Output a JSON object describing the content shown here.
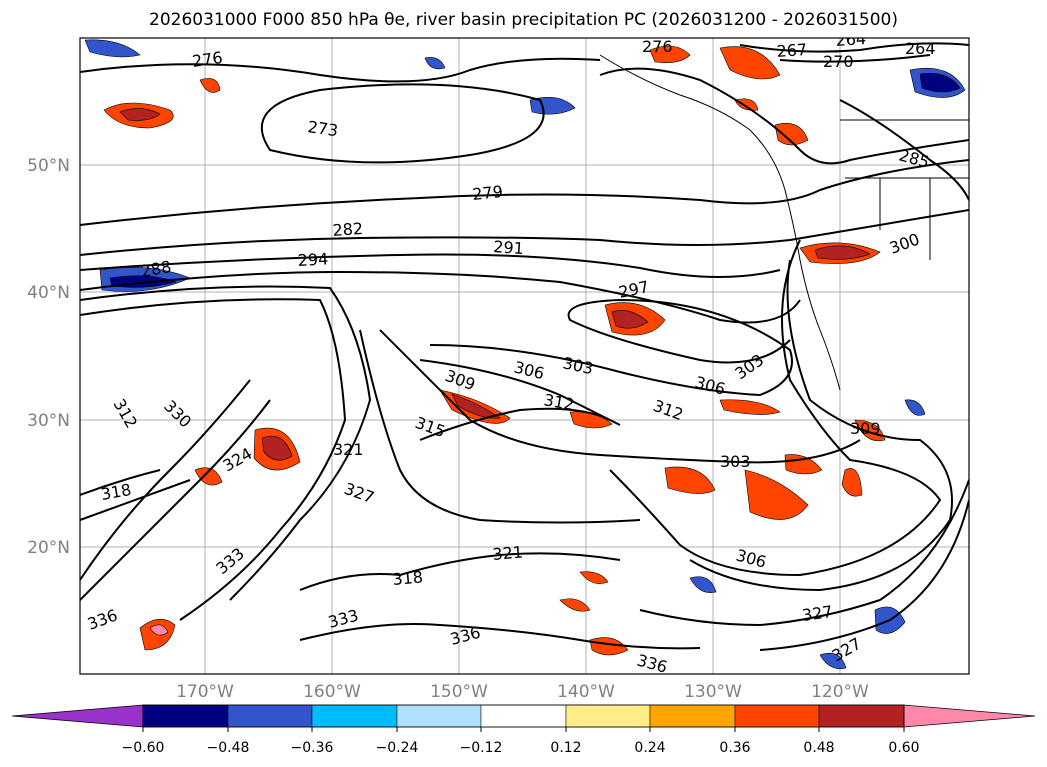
{
  "title": "2026031000 F000 850 hPa θe, river basin precipitation PC (2026031200 - 2026031500)",
  "map": {
    "lat_labels": [
      "50°N",
      "40°N",
      "30°N",
      "20°N"
    ],
    "lon_labels": [
      "170°W",
      "160°W",
      "150°W",
      "140°W",
      "130°W",
      "120°W"
    ]
  },
  "contour_labels": [
    "276",
    "273",
    "279",
    "282",
    "288",
    "294",
    "291",
    "297",
    "300",
    "303",
    "306",
    "309",
    "312",
    "315",
    "318",
    "321",
    "324",
    "327",
    "330",
    "333",
    "336",
    "276",
    "267",
    "264",
    "270",
    "264",
    "285",
    "303",
    "306",
    "312",
    "318",
    "321",
    "327",
    "333",
    "336",
    "336",
    "303",
    "306",
    "327",
    "309",
    "312"
  ],
  "colorbar": {
    "tick_labels": [
      "−0.60",
      "−0.48",
      "−0.36",
      "−0.24",
      "−0.12",
      "0.12",
      "0.24",
      "0.36",
      "0.48",
      "0.60"
    ],
    "colors": [
      "#9933cc",
      "#000080",
      "#3355cc",
      "#00bbff",
      "#b0e0ff",
      "#ffffff",
      "#ffee88",
      "#ffa500",
      "#ff4400",
      "#b22222",
      "#ff88aa"
    ]
  }
}
